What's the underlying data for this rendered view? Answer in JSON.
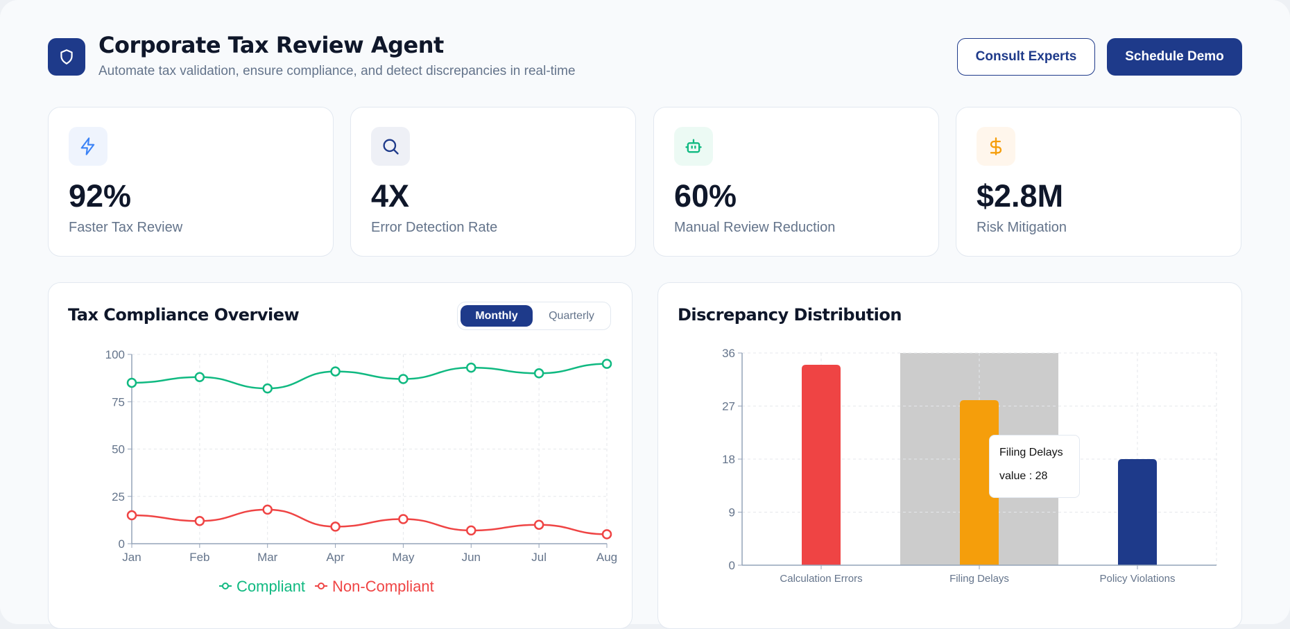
{
  "header": {
    "title": "Corporate Tax Review Agent",
    "subtitle": "Automate tax validation, ensure compliance, and detect discrepancies in real-time",
    "logo_icon": "shield-icon",
    "consult_label": "Consult Experts",
    "demo_label": "Schedule Demo"
  },
  "colors": {
    "primary": "#1e3a8a",
    "green": "#10b981",
    "red": "#ef4444",
    "amber": "#f59e0b"
  },
  "stats": [
    {
      "value": "92%",
      "label": "Faster Tax Review",
      "icon": "zap-icon"
    },
    {
      "value": "4X",
      "label": "Error Detection Rate",
      "icon": "search-icon"
    },
    {
      "value": "60%",
      "label": "Manual Review Reduction",
      "icon": "bot-icon"
    },
    {
      "value": "$2.8M",
      "label": "Risk Mitigation",
      "icon": "dollar-icon"
    }
  ],
  "compliance": {
    "title": "Tax Compliance Overview",
    "toggle": {
      "monthly": "Monthly",
      "quarterly": "Quarterly",
      "selected": "Monthly"
    }
  },
  "discrepancy": {
    "title": "Discrepancy Distribution",
    "tooltip": {
      "title": "Filing Delays",
      "value_text": "value : 28"
    }
  },
  "chart_data": [
    {
      "type": "line",
      "categories": [
        "Jan",
        "Feb",
        "Mar",
        "Apr",
        "May",
        "Jun",
        "Jul",
        "Aug"
      ],
      "series": [
        {
          "name": "Compliant",
          "color": "#10b981",
          "values": [
            85,
            88,
            82,
            91,
            87,
            93,
            90,
            95
          ]
        },
        {
          "name": "Non-Compliant",
          "color": "#ef4444",
          "values": [
            15,
            12,
            18,
            9,
            13,
            7,
            10,
            5
          ]
        }
      ],
      "ylim": [
        0,
        100
      ],
      "yticks": [
        0,
        25,
        50,
        75,
        100
      ],
      "grid": true,
      "legend": "bottom"
    },
    {
      "type": "bar",
      "categories": [
        "Calculation Errors",
        "Filing Delays",
        "Policy Violations"
      ],
      "values": [
        34,
        28,
        18
      ],
      "colors": [
        "#ef4444",
        "#f59e0b",
        "#1e3a8a"
      ],
      "ylim": [
        0,
        36
      ],
      "yticks": [
        0,
        9,
        18,
        27,
        36
      ],
      "grid": true,
      "highlighted": "Filing Delays"
    }
  ]
}
